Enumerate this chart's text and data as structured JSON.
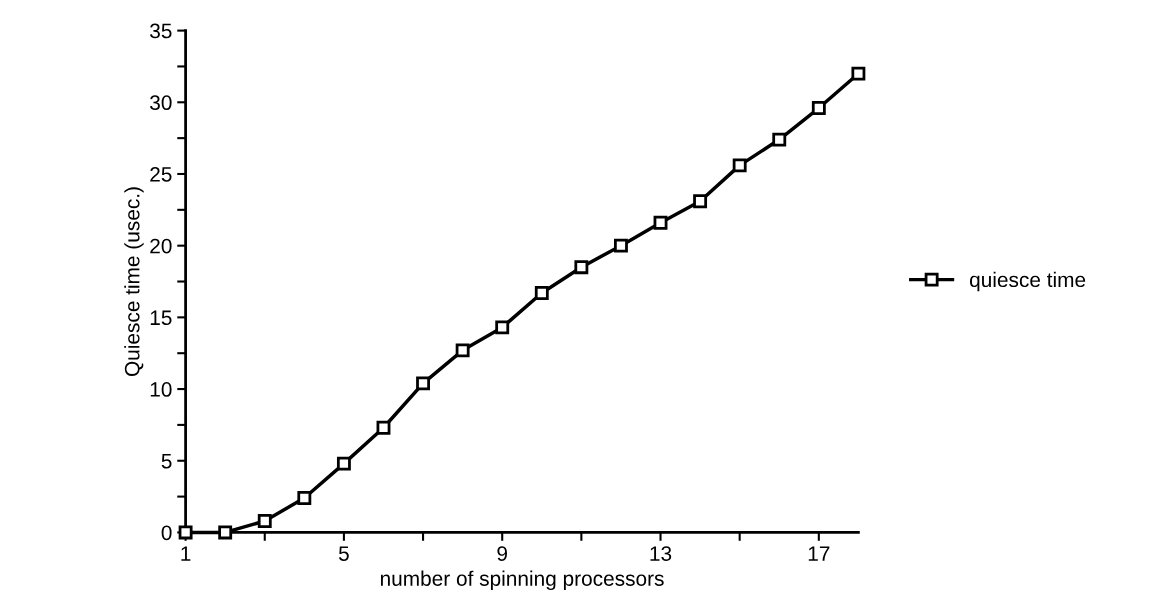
{
  "chart_data": {
    "type": "line",
    "xlabel": "number of spinning processors",
    "ylabel": "Quiesce time (usec.)",
    "x": [
      1,
      2,
      3,
      4,
      5,
      6,
      7,
      8,
      9,
      10,
      11,
      12,
      13,
      14,
      15,
      16,
      17,
      18
    ],
    "series": [
      {
        "name": "quiesce time",
        "color": "#000000",
        "values": [
          0,
          0,
          0.8,
          2.4,
          4.8,
          7.3,
          10.4,
          12.7,
          14.3,
          16.7,
          18.5,
          20.0,
          21.6,
          23.1,
          25.6,
          27.4,
          29.6,
          32.0
        ]
      }
    ],
    "xlim": [
      1,
      18
    ],
    "ylim": [
      0,
      35
    ],
    "xticks": [
      1,
      {
        "value": 3,
        "label": null
      },
      5,
      {
        "value": 7,
        "label": null
      },
      9,
      {
        "value": 11,
        "label": null
      },
      13,
      {
        "value": 15,
        "label": null
      },
      17
    ],
    "yticks": [
      0,
      {
        "value": 2.5,
        "label": null
      },
      5,
      {
        "value": 7.5,
        "label": null
      },
      10,
      {
        "value": 12.5,
        "label": null
      },
      15,
      {
        "value": 17.5,
        "label": null
      },
      20,
      {
        "value": 22.5,
        "label": null
      },
      25,
      {
        "value": 27.5,
        "label": null
      },
      30,
      {
        "value": 32.5,
        "label": null
      },
      35
    ],
    "marker": "square",
    "line_style": "solid",
    "grid": false,
    "legend": "right"
  }
}
